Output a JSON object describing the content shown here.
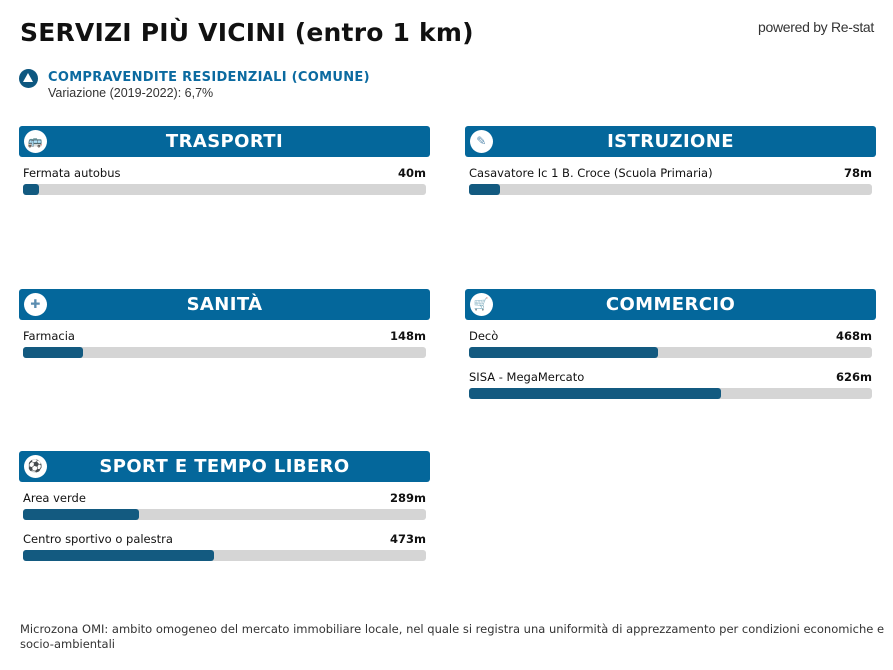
{
  "title": "SERVIZI PIÙ VICINI (entro 1 km)",
  "powered_by": "powered by Re-stat",
  "trend": {
    "icon": "triangle-up-icon",
    "title": "COMPRAVENDITE RESIDENZIALI (COMUNE)",
    "subtitle": "Variazione (2019-2022): 6,7%"
  },
  "sections": [
    {
      "title": "TRASPORTI",
      "icon": "bus-icon",
      "items": [
        {
          "label": "Fermata autobus",
          "value": "40m",
          "fraction": 0.04
        }
      ]
    },
    {
      "title": "ISTRUZIONE",
      "icon": "school-icon",
      "items": [
        {
          "label": "Casavatore Ic 1 B. Croce (Scuola Primaria)",
          "value": "78m",
          "fraction": 0.078
        }
      ]
    },
    {
      "title": "SANITÀ",
      "icon": "pharmacy-icon",
      "items": [
        {
          "label": "Farmacia",
          "value": "148m",
          "fraction": 0.148
        }
      ]
    },
    {
      "title": "COMMERCIO",
      "icon": "cart-icon",
      "items": [
        {
          "label": "Decò",
          "value": "468m",
          "fraction": 0.468
        },
        {
          "label": "SISA - MegaMercato",
          "value": "626m",
          "fraction": 0.626
        }
      ]
    },
    {
      "title": "SPORT E TEMPO LIBERO",
      "icon": "sport-icon",
      "items": [
        {
          "label": "Area verde",
          "value": "289m",
          "fraction": 0.289
        },
        {
          "label": "Centro sportivo o palestra",
          "value": "473m",
          "fraction": 0.473
        }
      ]
    }
  ],
  "footer": {
    "line1": "Microzona OMI: ambito omogeneo del mercato immobiliare locale, nel quale si registra una uniformità di apprezzamento per condizioni economiche e",
    "line2": "socio-ambientali"
  }
}
